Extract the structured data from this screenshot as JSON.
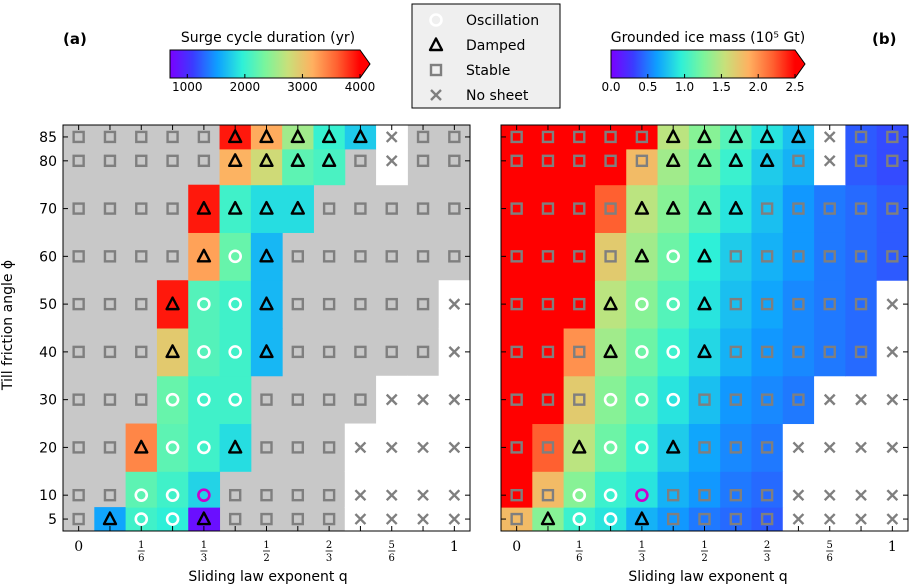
{
  "chart_data": [
    {
      "type": "heatmap",
      "panel_label": "(a)",
      "xlabel": "Sliding law exponent q",
      "ylabel": "Till friction angle ϕ",
      "x_ticks": [
        0,
        0.0833,
        0.1667,
        0.25,
        0.3333,
        0.4167,
        0.5,
        0.5833,
        0.6667,
        0.75,
        0.8333,
        0.9167,
        1.0
      ],
      "x_tick_labels": [
        {
          "value": 0,
          "label": "0"
        },
        {
          "value": 0.1667,
          "num": "1",
          "den": "6"
        },
        {
          "value": 0.3333,
          "num": "1",
          "den": "3"
        },
        {
          "value": 0.5,
          "num": "1",
          "den": "2"
        },
        {
          "value": 0.6667,
          "num": "2",
          "den": "3"
        },
        {
          "value": 0.8333,
          "num": "5",
          "den": "6"
        },
        {
          "value": 1.0,
          "label": "1"
        }
      ],
      "y_values": [
        5,
        10,
        20,
        30,
        40,
        50,
        60,
        70,
        80,
        85
      ],
      "colorbar": {
        "title": "Surge cycle duration (yr)",
        "min": 700,
        "max": 4000,
        "ticks": [
          "1000",
          "2000",
          "3000",
          "4000"
        ],
        "tick_values": [
          1000,
          2000,
          3000,
          4000
        ],
        "extend": "max"
      },
      "background_color": "#c8c8c8",
      "rows": [
        {
          "phi": 5,
          "values": [
            null,
            1550,
            2050,
            1950,
            800,
            null,
            null,
            null,
            null,
            null,
            null,
            null,
            null
          ],
          "markers": [
            "S",
            "D",
            "O",
            "O",
            "D",
            "S",
            "S",
            "S",
            "S",
            "X",
            "X",
            "X",
            "X"
          ]
        },
        {
          "phi": 10,
          "values": [
            null,
            null,
            2200,
            2050,
            1800,
            null,
            null,
            null,
            null,
            null,
            null,
            null,
            null
          ],
          "markers": [
            "S",
            "S",
            "O",
            "O",
            "Om",
            "S",
            "S",
            "S",
            "S",
            "X",
            "X",
            "X",
            "X"
          ]
        },
        {
          "phi": 20,
          "values": [
            null,
            null,
            3400,
            2200,
            2050,
            1850,
            null,
            null,
            null,
            null,
            null,
            null,
            null
          ],
          "markers": [
            "S",
            "S",
            "D",
            "O",
            "O",
            "D",
            "S",
            "S",
            "S",
            "X",
            "X",
            "X",
            "X"
          ]
        },
        {
          "phi": 30,
          "values": [
            null,
            null,
            null,
            2250,
            2050,
            2050,
            null,
            null,
            null,
            null,
            null,
            null,
            null
          ],
          "markers": [
            "S",
            "S",
            "S",
            "O",
            "O",
            "O",
            "S",
            "S",
            "S",
            "S",
            "X",
            "X",
            "X"
          ]
        },
        {
          "phi": 40,
          "values": [
            null,
            null,
            null,
            2950,
            2150,
            2050,
            1650,
            null,
            null,
            null,
            null,
            null,
            null
          ],
          "markers": [
            "S",
            "S",
            "S",
            "D",
            "O",
            "O",
            "D",
            "S",
            "S",
            "S",
            "S",
            "S",
            "X"
          ]
        },
        {
          "phi": 50,
          "values": [
            null,
            null,
            null,
            3900,
            2150,
            2050,
            1650,
            null,
            null,
            null,
            null,
            null,
            null
          ],
          "markers": [
            "S",
            "S",
            "S",
            "D",
            "O",
            "O",
            "D",
            "S",
            "S",
            "S",
            "S",
            "S",
            "X"
          ]
        },
        {
          "phi": 60,
          "values": [
            null,
            null,
            null,
            null,
            3250,
            2250,
            1650,
            null,
            null,
            null,
            null,
            null,
            null
          ],
          "markers": [
            "S",
            "S",
            "S",
            "S",
            "D",
            "O",
            "D",
            "S",
            "S",
            "S",
            "S",
            "S",
            "S"
          ]
        },
        {
          "phi": 70,
          "values": [
            null,
            null,
            null,
            null,
            3900,
            2050,
            1850,
            1850,
            null,
            null,
            null,
            null,
            null
          ],
          "markers": [
            "S",
            "S",
            "S",
            "S",
            "D",
            "D",
            "D",
            "D",
            "S",
            "S",
            "S",
            "S",
            "S"
          ]
        },
        {
          "phi": 80,
          "values": [
            null,
            null,
            null,
            null,
            null,
            3150,
            2800,
            2200,
            2100,
            null,
            null,
            null,
            null
          ],
          "markers": [
            "S",
            "S",
            "S",
            "S",
            "S",
            "D",
            "D",
            "D",
            "D",
            "S",
            "X",
            "S",
            "S"
          ]
        },
        {
          "phi": 85,
          "values": [
            null,
            null,
            null,
            null,
            null,
            3900,
            3200,
            2550,
            2000,
            1750,
            null,
            null,
            null
          ],
          "markers": [
            "S",
            "S",
            "S",
            "S",
            "S",
            "D",
            "D",
            "D",
            "D",
            "D",
            "X",
            "S",
            "S"
          ]
        }
      ],
      "empty_cells": [
        [
          "5",
          9
        ],
        [
          "5",
          10
        ],
        [
          "5",
          11
        ],
        [
          "5",
          12
        ],
        [
          "10",
          9
        ],
        [
          "10",
          10
        ],
        [
          "10",
          11
        ],
        [
          "10",
          12
        ],
        [
          "20",
          9
        ],
        [
          "20",
          10
        ],
        [
          "20",
          11
        ],
        [
          "20",
          12
        ],
        [
          "30",
          10
        ],
        [
          "30",
          11
        ],
        [
          "30",
          12
        ],
        [
          "40",
          12
        ],
        [
          "50",
          12
        ],
        [
          "80",
          10
        ],
        [
          "85",
          10
        ]
      ]
    },
    {
      "type": "heatmap",
      "panel_label": "(b)",
      "xlabel": "Sliding law exponent q",
      "colorbar": {
        "title": "Grounded ice mass (10⁵ Gt)",
        "min": 0,
        "max": 2.5,
        "ticks": [
          "0.0",
          "0.5",
          "1.0",
          "1.5",
          "2.0",
          "2.5"
        ],
        "tick_values": [
          0,
          0.5,
          1.0,
          1.5,
          2.0,
          2.5
        ],
        "extend": "max"
      },
      "rows": [
        {
          "phi": 5,
          "values": [
            1.8,
            1.3,
            1.0,
            0.9,
            0.7,
            0.6,
            0.5,
            0.45,
            0.4,
            null,
            null,
            null,
            null
          ],
          "markers": [
            "S",
            "D",
            "O",
            "O",
            "D",
            "S",
            "S",
            "S",
            "S",
            "X",
            "X",
            "X",
            "X"
          ]
        },
        {
          "phi": 10,
          "values": [
            2.6,
            1.8,
            1.3,
            1.0,
            0.9,
            0.7,
            0.6,
            0.5,
            0.45,
            null,
            null,
            null,
            null
          ],
          "markers": [
            "S",
            "S",
            "O",
            "O",
            "Om",
            "S",
            "S",
            "S",
            "S",
            "X",
            "X",
            "X",
            "X"
          ]
        },
        {
          "phi": 20,
          "values": [
            2.6,
            2.2,
            1.5,
            1.2,
            1.0,
            0.8,
            0.65,
            0.55,
            0.5,
            null,
            null,
            null,
            null
          ],
          "markers": [
            "S",
            "S",
            "D",
            "O",
            "O",
            "D",
            "S",
            "S",
            "S",
            "X",
            "X",
            "X",
            "X"
          ]
        },
        {
          "phi": 30,
          "values": [
            2.6,
            2.6,
            1.7,
            1.3,
            1.1,
            0.9,
            0.75,
            0.6,
            0.55,
            0.5,
            null,
            null,
            null
          ],
          "markers": [
            "S",
            "S",
            "S",
            "O",
            "O",
            "O",
            "S",
            "S",
            "S",
            "S",
            "X",
            "X",
            "X"
          ]
        },
        {
          "phi": 40,
          "values": [
            2.6,
            2.6,
            2.0,
            1.4,
            1.2,
            1.0,
            0.85,
            0.7,
            0.6,
            0.55,
            0.5,
            0.45,
            null
          ],
          "markers": [
            "S",
            "S",
            "S",
            "D",
            "O",
            "O",
            "D",
            "S",
            "S",
            "S",
            "S",
            "S",
            "X"
          ]
        },
        {
          "phi": 50,
          "values": [
            2.6,
            2.6,
            2.6,
            1.5,
            1.3,
            1.1,
            0.9,
            0.75,
            0.65,
            0.55,
            0.5,
            0.45,
            null
          ],
          "markers": [
            "S",
            "S",
            "S",
            "D",
            "O",
            "O",
            "D",
            "S",
            "S",
            "S",
            "S",
            "S",
            "X"
          ]
        },
        {
          "phi": 60,
          "values": [
            2.6,
            2.6,
            2.6,
            1.7,
            1.4,
            1.2,
            0.95,
            0.8,
            0.7,
            0.6,
            0.5,
            0.45,
            0.4
          ],
          "markers": [
            "S",
            "S",
            "S",
            "S",
            "D",
            "O",
            "D",
            "S",
            "S",
            "S",
            "S",
            "S",
            "S"
          ]
        },
        {
          "phi": 70,
          "values": [
            2.6,
            2.6,
            2.6,
            2.2,
            1.5,
            1.3,
            1.1,
            0.9,
            0.75,
            0.6,
            0.5,
            0.45,
            0.4
          ],
          "markers": [
            "S",
            "S",
            "S",
            "S",
            "D",
            "D",
            "D",
            "D",
            "S",
            "S",
            "S",
            "S",
            "S"
          ]
        },
        {
          "phi": 80,
          "values": [
            2.6,
            2.6,
            2.6,
            2.6,
            1.8,
            1.4,
            1.2,
            1.0,
            0.8,
            0.7,
            null,
            0.4,
            0.35
          ],
          "markers": [
            "S",
            "S",
            "S",
            "S",
            "S",
            "D",
            "D",
            "D",
            "D",
            "S",
            "X",
            "S",
            "S"
          ]
        },
        {
          "phi": 85,
          "values": [
            2.6,
            2.6,
            2.6,
            2.6,
            2.6,
            1.5,
            1.3,
            1.1,
            0.9,
            0.75,
            null,
            0.4,
            0.35
          ],
          "markers": [
            "S",
            "S",
            "S",
            "S",
            "S",
            "D",
            "D",
            "D",
            "D",
            "D",
            "X",
            "S",
            "S"
          ]
        }
      ]
    }
  ],
  "legend": {
    "items": [
      {
        "key": "O",
        "label": "Oscillation"
      },
      {
        "key": "D",
        "label": "Damped"
      },
      {
        "key": "S",
        "label": "Stable"
      },
      {
        "key": "X",
        "label": "No sheet"
      }
    ]
  },
  "colors": {
    "oscillation_marker": "#ffffff",
    "oscillation_special": "#cc00cc",
    "damped_marker": "#000000",
    "stable_marker": "#7f7f7f",
    "nosheet_marker": "#7f7f7f",
    "grid_background": "#c8c8c8"
  }
}
